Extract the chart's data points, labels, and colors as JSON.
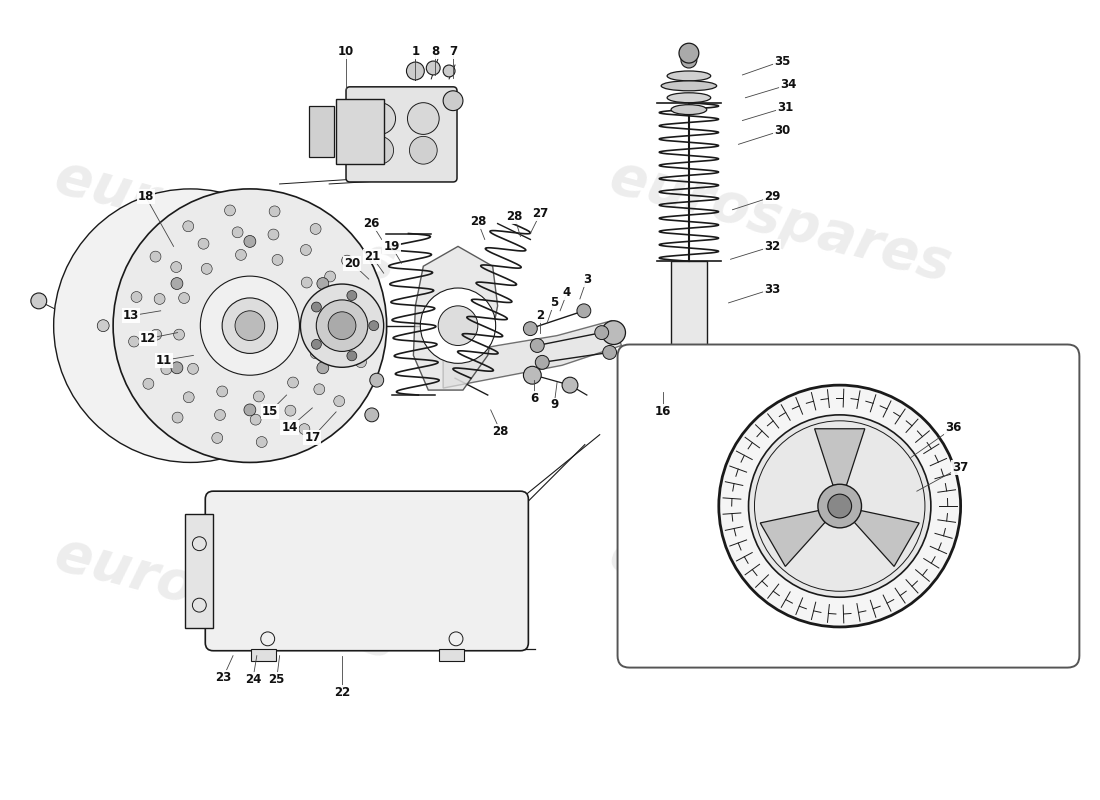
{
  "bg_color": "#ffffff",
  "line_color": "#1a1a1a",
  "watermark": "eurospares",
  "wm_color": "#c0c0c0",
  "wm_alpha": 0.28,
  "label_fs": 8.5,
  "wm_fs": 40,
  "figw": 11.0,
  "figh": 8.0,
  "dpi": 100
}
